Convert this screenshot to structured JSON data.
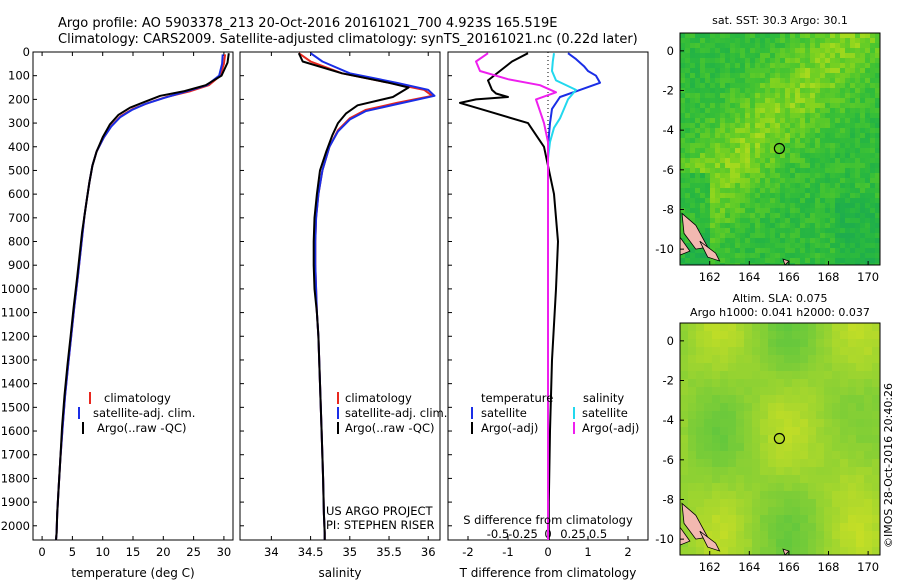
{
  "header": {
    "title_line1": "Argo profile: AO 5903378_213 20-Oct-2016 20161021_700 4.923S 165.519E",
    "title_line2": "Climatology: CARS2009. Satellite-adjusted climatology: synTS_20161021.nc (0.22d later)"
  },
  "footer": {
    "project_line1": "US ARGO PROJECT",
    "project_line2": "PI: STEPHEN RISER",
    "credit": "©IMOS 28-Oct-2016 20:40:26"
  },
  "colors": {
    "climatology": "#e8271e",
    "satellite": "#1a2ee6",
    "argo": "#000000",
    "s_satellite": "#22d8ee",
    "s_argo": "#ee1fee",
    "map_base": "#38c63e",
    "land": "#f2b8b0"
  },
  "chart_data": [
    {
      "type": "line",
      "name": "temperature",
      "xlabel": "temperature (deg C)",
      "ylabel": "",
      "xlim": [
        -1.5,
        31.5
      ],
      "ylim": [
        2060,
        0
      ],
      "xticks": [
        "0",
        "5",
        "10",
        "15",
        "20",
        "25",
        "30"
      ],
      "yticks": [
        "0",
        "100",
        "200",
        "300",
        "400",
        "500",
        "600",
        "700",
        "800",
        "900",
        "1000",
        "1100",
        "1200",
        "1300",
        "1400",
        "1500",
        "1600",
        "1700",
        "1800",
        "1900",
        "2000"
      ],
      "legend": [
        "climatology",
        "satellite-adj. clim.",
        "Argo(..raw -QC)"
      ],
      "legend_position": "lower-right",
      "series": [
        {
          "name": "climatology",
          "x": [
            30.2,
            30.0,
            29.4,
            27.5,
            24.5,
            20.5,
            17.5,
            15.0,
            13.0,
            11.5,
            10.2,
            9.0,
            8.3,
            7.8,
            7.4,
            7.0,
            6.7,
            6.4,
            5.9,
            5.3,
            4.8,
            4.3,
            3.8,
            3.4,
            3.0,
            2.7,
            2.5,
            2.4,
            2.3
          ],
          "y": [
            10,
            50,
            100,
            140,
            165,
            190,
            215,
            240,
            270,
            310,
            360,
            420,
            480,
            550,
            620,
            690,
            760,
            830,
            950,
            1080,
            1200,
            1320,
            1450,
            1580,
            1720,
            1850,
            1950,
            2030,
            2060
          ]
        },
        {
          "name": "satellite-adj. clim.",
          "x": [
            29.8,
            29.7,
            29.2,
            27.2,
            24.0,
            20.0,
            17.0,
            14.8,
            12.9,
            11.4,
            10.2,
            9.0,
            8.3,
            7.8,
            7.4,
            7.0,
            6.7,
            6.4,
            5.9,
            5.3,
            4.8,
            4.3,
            3.8,
            3.4,
            3.0,
            2.7,
            2.5,
            2.4,
            2.3
          ],
          "y": [
            10,
            50,
            100,
            140,
            165,
            195,
            220,
            245,
            275,
            315,
            360,
            420,
            480,
            550,
            620,
            690,
            760,
            830,
            950,
            1080,
            1200,
            1320,
            1450,
            1580,
            1720,
            1850,
            1950,
            2030,
            2060
          ]
        },
        {
          "name": "Argo(..raw -QC)",
          "x": [
            30.8,
            30.6,
            29.6,
            27.0,
            23.5,
            19.5,
            17.0,
            14.5,
            12.6,
            11.2,
            10.0,
            9.0,
            8.3,
            7.8,
            7.4,
            7.0,
            6.6,
            6.3,
            5.8,
            5.2,
            4.7,
            4.2,
            3.7,
            3.3,
            3.0,
            2.7,
            2.5,
            2.4,
            2.3
          ],
          "y": [
            5,
            45,
            100,
            140,
            165,
            185,
            210,
            235,
            265,
            305,
            360,
            420,
            480,
            550,
            620,
            690,
            760,
            830,
            950,
            1080,
            1200,
            1320,
            1450,
            1580,
            1720,
            1850,
            1950,
            2030,
            2060
          ]
        }
      ]
    },
    {
      "type": "line",
      "name": "salinity",
      "xlabel": "salinity",
      "xlim": [
        33.6,
        36.15
      ],
      "ylim": [
        2060,
        0
      ],
      "xticks": [
        "34",
        "34.5",
        "35",
        "35.5",
        "36"
      ],
      "legend": [
        "climatology",
        "satellite-adj. clim.",
        "Argo(..raw -QC)"
      ],
      "legend_position": "lower-right",
      "series": [
        {
          "name": "climatology",
          "x": [
            34.35,
            34.5,
            34.9,
            35.5,
            35.95,
            36.05,
            35.6,
            35.2,
            35.0,
            34.85,
            34.74,
            34.65,
            34.6,
            34.57,
            34.56,
            34.56,
            34.57,
            34.58,
            34.6,
            34.62,
            34.64,
            34.66,
            34.67,
            34.68,
            34.68
          ],
          "y": [
            5,
            40,
            90,
            130,
            160,
            185,
            215,
            245,
            280,
            330,
            400,
            500,
            600,
            700,
            800,
            900,
            1000,
            1100,
            1200,
            1400,
            1600,
            1800,
            1950,
            2030,
            2060
          ]
        },
        {
          "name": "satellite-adj. clim.",
          "x": [
            34.5,
            34.65,
            35.0,
            35.6,
            36.0,
            36.08,
            35.6,
            35.2,
            35.0,
            34.85,
            34.74,
            34.65,
            34.6,
            34.57,
            34.56,
            34.56,
            34.57,
            34.58,
            34.6,
            34.62,
            34.64,
            34.66,
            34.67,
            34.68,
            34.68
          ],
          "y": [
            5,
            40,
            90,
            130,
            160,
            185,
            220,
            250,
            285,
            335,
            400,
            500,
            600,
            700,
            800,
            900,
            1000,
            1100,
            1200,
            1400,
            1600,
            1800,
            1950,
            2030,
            2060
          ]
        },
        {
          "name": "Argo(..raw -QC)",
          "x": [
            34.35,
            34.4,
            34.9,
            35.5,
            35.75,
            35.55,
            35.1,
            34.95,
            34.85,
            34.78,
            34.7,
            34.62,
            34.58,
            34.55,
            34.54,
            34.54,
            34.55,
            34.58,
            34.6,
            34.62,
            34.64,
            34.66,
            34.67,
            34.68,
            34.68
          ],
          "y": [
            5,
            40,
            90,
            130,
            150,
            190,
            225,
            260,
            300,
            350,
            420,
            500,
            600,
            700,
            800,
            900,
            1000,
            1100,
            1200,
            1400,
            1600,
            1800,
            1950,
            2030,
            2060
          ]
        }
      ]
    },
    {
      "type": "line",
      "name": "difference",
      "xlabel": "T difference from climatology",
      "xlabel_top": "S difference from climatology",
      "xlim": [
        -2.5,
        2.5
      ],
      "ylim": [
        2060,
        0
      ],
      "xticks": [
        "-2",
        "-1",
        "0",
        "1",
        "2"
      ],
      "s_xticks": [
        "-0.5",
        "-0.25",
        "0",
        "0.25",
        "0.5"
      ],
      "legend": [
        "temperature",
        "satellite",
        "Argo(-adj)",
        "salinity",
        "satellite",
        "Argo(-adj)"
      ],
      "legend_position": "lower-center",
      "series": [
        {
          "name": "T satellite",
          "x": [
            0.5,
            0.7,
            0.9,
            1.0,
            1.2,
            1.3,
            0.8,
            0.3,
            0.1,
            0.05,
            0,
            0,
            0,
            0,
            0,
            0,
            0,
            0
          ],
          "y": [
            5,
            30,
            60,
            80,
            100,
            130,
            160,
            190,
            240,
            300,
            400,
            600,
            800,
            1000,
            1300,
            1600,
            1900,
            2060
          ]
        },
        {
          "name": "T Argo(-adj)",
          "x": [
            -0.5,
            -0.9,
            -1.5,
            -1.4,
            -1.3,
            -1.0,
            -1.8,
            -2.2,
            -1.5,
            -0.5,
            -0.1,
            0.15,
            0.25,
            0.2,
            0.1,
            0.05,
            0.02,
            0.02
          ],
          "y": [
            5,
            40,
            120,
            160,
            175,
            190,
            200,
            215,
            250,
            300,
            400,
            600,
            800,
            1000,
            1300,
            1600,
            1900,
            2060
          ]
        },
        {
          "name": "S satellite",
          "x": [
            0.15,
            0.12,
            0.1,
            0.2,
            0.7,
            0.5,
            0.4,
            0.3,
            0.15,
            0.05,
            0,
            0,
            0,
            0,
            0,
            0,
            0
          ],
          "y": [
            5,
            40,
            80,
            120,
            160,
            200,
            240,
            280,
            320,
            380,
            450,
            600,
            800,
            1000,
            1400,
            1800,
            2060
          ]
        },
        {
          "name": "S Argo(-adj)",
          "x": [
            -1.5,
            -1.8,
            -1.7,
            -1.0,
            -0.2,
            0.2,
            -0.3,
            -0.2,
            -0.1,
            0,
            0,
            0,
            0,
            0,
            0
          ],
          "y": [
            5,
            40,
            80,
            115,
            140,
            170,
            200,
            250,
            300,
            380,
            450,
            600,
            1000,
            1500,
            2060
          ]
        }
      ]
    },
    {
      "type": "heatmap",
      "name": "sst-map",
      "title": "sat. SST: 30.3 Argo: 30.1",
      "xlim": [
        160.5,
        170.6
      ],
      "ylim": [
        -10.8,
        0.9
      ],
      "xticks": [
        "162",
        "164",
        "166",
        "168",
        "170"
      ],
      "yticks": [
        "0",
        "-2",
        "-4",
        "-6",
        "-8",
        "-10"
      ],
      "marker": {
        "lon": 165.519,
        "lat": -4.923
      }
    },
    {
      "type": "heatmap",
      "name": "sla-map",
      "title": "Altim. SLA: 0.075",
      "subtitle": "Argo h1000: 0.041 h2000: 0.037",
      "xlim": [
        160.5,
        170.6
      ],
      "ylim": [
        -10.8,
        0.9
      ],
      "xticks": [
        "162",
        "164",
        "166",
        "168",
        "170"
      ],
      "yticks": [
        "0",
        "-2",
        "-4",
        "-6",
        "-8",
        "-10"
      ],
      "marker": {
        "lon": 165.519,
        "lat": -4.923
      }
    }
  ]
}
